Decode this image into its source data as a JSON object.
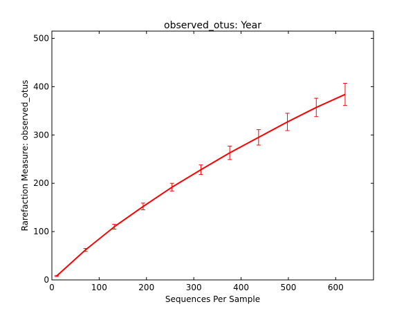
{
  "chart_data": {
    "type": "line",
    "title": "observed_otus: Year",
    "xlabel": "Sequences Per Sample",
    "ylabel": "Rarefaction Measure: observed_otus",
    "xlim": [
      0,
      680
    ],
    "ylim": [
      0,
      515
    ],
    "xticks": [
      0,
      100,
      200,
      300,
      400,
      500,
      600
    ],
    "yticks": [
      0,
      100,
      200,
      300,
      400,
      500
    ],
    "grid": false,
    "series": [
      {
        "color": "#ff0000",
        "x": [
          10,
          71,
          132,
          193,
          254,
          315,
          376,
          437,
          498,
          559,
          620
        ],
        "y": [
          8,
          62,
          110,
          152,
          192,
          228,
          263,
          295,
          327,
          357,
          384
        ],
        "error": [
          1,
          3,
          5,
          7,
          8,
          10,
          14,
          16,
          18,
          19,
          23
        ]
      }
    ]
  }
}
